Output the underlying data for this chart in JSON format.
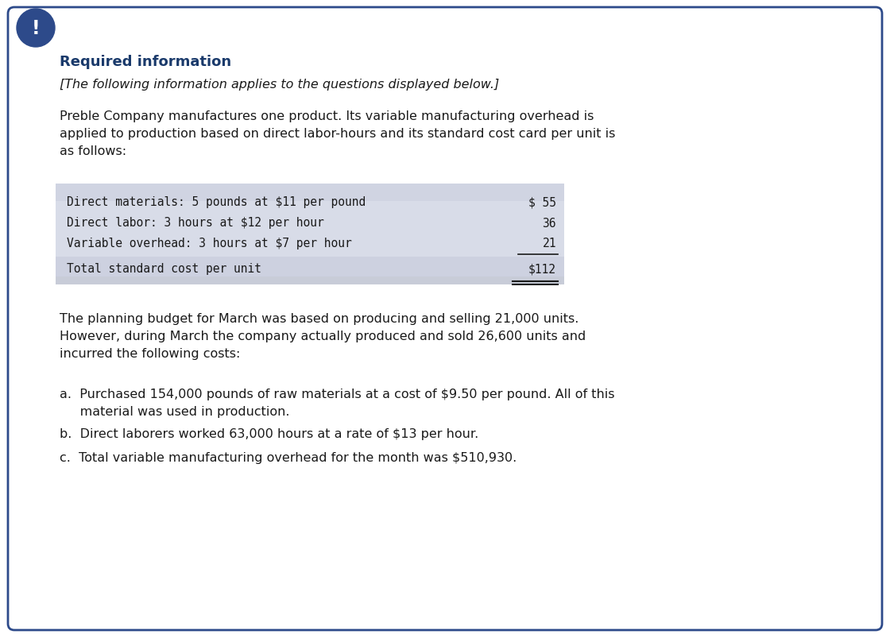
{
  "bg_color": "#ffffff",
  "border_color": "#2d4a8a",
  "icon_color": "#2d4a8a",
  "title": "Required information",
  "title_color": "#1a3a6b",
  "subtitle": "[The following information applies to the questions displayed below.]",
  "subtitle_color": "#1a1a1a",
  "body_text": "Preble Company manufactures one product. Its variable manufacturing overhead is\napplied to production based on direct labor-hours and its standard cost card per unit is\nas follows:",
  "body_color": "#1a1a1a",
  "table_bg_header": "#d0d4e2",
  "table_bg_rows": "#d8dce8",
  "table_bg_total": "#cdd1e0",
  "table_bg_bottom": "#c8ccd8",
  "table_lines": [
    "Direct materials: 5 pounds at $11 per pound",
    "Direct labor: 3 hours at $12 per hour",
    "Variable overhead: 3 hours at $7 per hour",
    "Total standard cost per unit"
  ],
  "table_values": [
    "$ 55",
    "36",
    "21",
    "$112"
  ],
  "para2": "The planning budget for March was based on producing and selling 21,000 units.\nHowever, during March the company actually produced and sold 26,600 units and\nincurred the following costs:",
  "list_item_a_line1": "a.  Purchased 154,000 pounds of raw materials at a cost of $9.50 per pound. All of this",
  "list_item_a_line2": "     material was used in production.",
  "list_item_b": "b.  Direct laborers worked 63,000 hours at a rate of $13 per hour.",
  "list_item_c": "c.  Total variable manufacturing overhead for the month was $510,930.",
  "font_size_title": 13,
  "font_size_body": 11.5,
  "font_size_table": 10.5,
  "font_size_subtitle": 11.5
}
